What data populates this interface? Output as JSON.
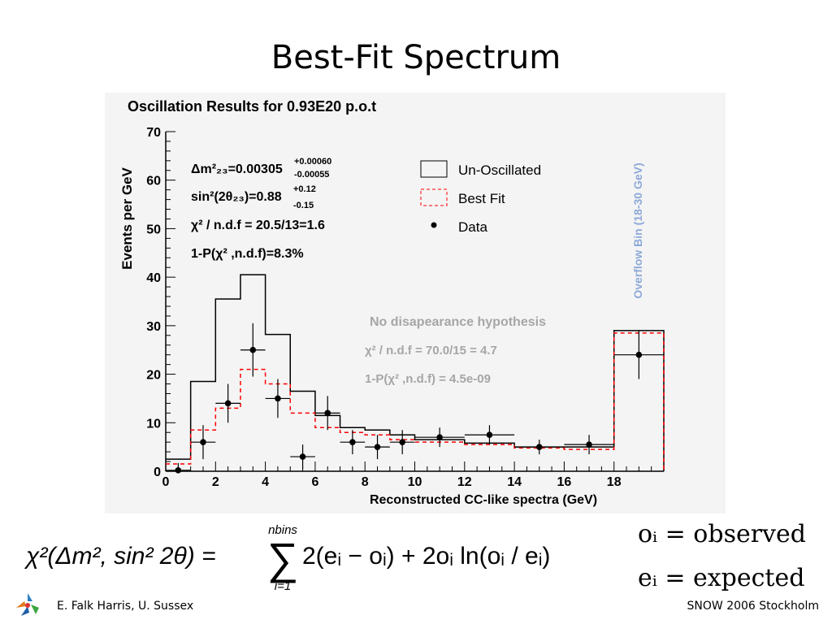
{
  "slide": {
    "title": "Best-Fit Spectrum",
    "footer_left": "E. Falk Harris, U. Sussex",
    "footer_right": "SNOW 2006 Stockholm",
    "formula_text": "χ²(Δm², sin² 2θ) = Σ_{i=1}^{nbins} 2(e_i − o_i) + 2o_i ln(o_i / e_i)",
    "formula_parts": {
      "lhs": "χ²(Δm², sin² 2θ) =",
      "sum_upper": "nbins",
      "sum_lower": "i=1",
      "rhs": "2(eᵢ − oᵢ) + 2oᵢ ln(oᵢ / eᵢ)"
    },
    "definitions": [
      "oᵢ = observed",
      "eᵢ = expected"
    ]
  },
  "chart_data": {
    "type": "histogram",
    "title": "Oscillation Results for 0.93E20 p.o.t",
    "xlabel": "Reconstructed CC-like spectra (GeV)",
    "ylabel": "Events per GeV",
    "xlim": [
      0,
      20
    ],
    "ylim": [
      0,
      70
    ],
    "x_ticks": [
      0,
      2,
      4,
      6,
      8,
      10,
      12,
      14,
      16,
      18
    ],
    "y_ticks": [
      0,
      10,
      20,
      30,
      40,
      50,
      60,
      70
    ],
    "overflow_label": "Overflow Bin (18-30 GeV)",
    "bin_edges": [
      0,
      1,
      2,
      3,
      4,
      5,
      6,
      7,
      8,
      9,
      10,
      12,
      14,
      16,
      18,
      20
    ],
    "series": [
      {
        "name": "Un-Oscillated",
        "style": "solid",
        "color": "#000000",
        "values": [
          2.5,
          18.5,
          35.5,
          40.5,
          28.2,
          16.5,
          11.5,
          9.0,
          8.5,
          7.5,
          6.5,
          5.8,
          5.0,
          5.0,
          29.0
        ]
      },
      {
        "name": "Best Fit",
        "style": "dashed",
        "color": "#ff0000",
        "values": [
          1.5,
          8.5,
          13.0,
          21.0,
          18.0,
          12.0,
          9.0,
          8.0,
          7.5,
          6.5,
          6.0,
          5.5,
          4.8,
          4.5,
          28.5
        ]
      },
      {
        "name": "Data",
        "style": "points",
        "color": "#000000",
        "points": [
          {
            "x": 0.5,
            "y": 0.2,
            "xerr": 0.5,
            "yerr": 1.5
          },
          {
            "x": 1.5,
            "y": 6.0,
            "xerr": 0.5,
            "yerr": 3.5
          },
          {
            "x": 2.5,
            "y": 14.0,
            "xerr": 0.5,
            "yerr": 4.0
          },
          {
            "x": 3.5,
            "y": 25.0,
            "xerr": 0.5,
            "yerr": 5.5
          },
          {
            "x": 4.5,
            "y": 15.0,
            "xerr": 0.5,
            "yerr": 4.0
          },
          {
            "x": 5.5,
            "y": 3.0,
            "xerr": 0.5,
            "yerr": 2.5
          },
          {
            "x": 6.5,
            "y": 12.0,
            "xerr": 0.5,
            "yerr": 3.5
          },
          {
            "x": 7.5,
            "y": 6.0,
            "xerr": 0.5,
            "yerr": 2.5
          },
          {
            "x": 8.5,
            "y": 5.0,
            "xerr": 0.5,
            "yerr": 2.5
          },
          {
            "x": 9.5,
            "y": 6.0,
            "xerr": 0.5,
            "yerr": 2.5
          },
          {
            "x": 11.0,
            "y": 7.0,
            "xerr": 1.0,
            "yerr": 2.0
          },
          {
            "x": 13.0,
            "y": 7.5,
            "xerr": 1.0,
            "yerr": 2.0
          },
          {
            "x": 15.0,
            "y": 5.0,
            "xerr": 1.0,
            "yerr": 1.5
          },
          {
            "x": 17.0,
            "y": 5.5,
            "xerr": 1.0,
            "yerr": 2.0
          },
          {
            "x": 19.0,
            "y": 24.0,
            "xerr": 1.0,
            "yerr": 5.0
          }
        ]
      }
    ],
    "legend": {
      "placement": "top-right",
      "entries": [
        "Un-Oscillated",
        "Best Fit",
        "Data"
      ]
    },
    "fit_results": [
      "Δm²₂₃=0.00305 (+0.00060 / −0.00055)",
      "sin²(2θ₂₃)=0.88 (+0.12 / −0.15)",
      "χ² / n.d.f = 20.5/13=1.6",
      "1-P(χ² ,n.d.f)=8.3%"
    ],
    "fit_parts": {
      "dm_main": "Δm²₂₃=0.00305",
      "dm_up": "+0.00060",
      "dm_dn": "-0.00055",
      "sin_main": "sin²(2θ₂₃)=0.88",
      "sin_up": "+0.12",
      "sin_dn": "-0.15",
      "chi": "χ² / n.d.f = 20.5/13=1.6",
      "prob": "1-P(χ² ,n.d.f)=8.3%"
    },
    "no_disappearance": {
      "title": "No disapearance hypothesis",
      "chi": "χ² / n.d.f = 70.0/15 = 4.7",
      "prob": "1-P(χ² ,n.d.f) = 4.5e-09"
    }
  }
}
